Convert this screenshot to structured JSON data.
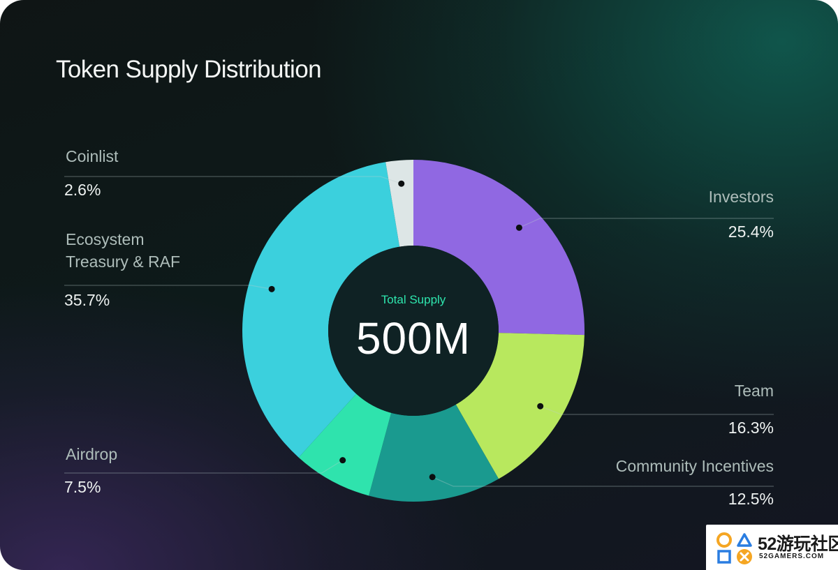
{
  "title": "Token Supply Distribution",
  "center": {
    "caption": "Total Supply",
    "value": "500M"
  },
  "chart_data": {
    "type": "pie",
    "title": "Token Supply Distribution",
    "total": "500M",
    "slices": [
      {
        "name": "Investors",
        "value": 25.4,
        "label": "25.4%",
        "color": "#9068e2"
      },
      {
        "name": "Team",
        "value": 16.3,
        "label": "16.3%",
        "color": "#b8e85e"
      },
      {
        "name": "Community Incentives",
        "value": 12.5,
        "label": "12.5%",
        "color": "#1a9a8f"
      },
      {
        "name": "Airdrop",
        "value": 7.5,
        "label": "7.5%",
        "color": "#2fe3ad"
      },
      {
        "name": "Ecosystem Treasury & RAF",
        "value": 35.7,
        "label": "35.7%",
        "color": "#3bd0dd"
      },
      {
        "name": "Coinlist",
        "value": 2.6,
        "label": "2.6%",
        "color": "#dde6e6"
      }
    ]
  },
  "labels": {
    "coinlist": {
      "name": "Coinlist",
      "pct": "2.6%"
    },
    "ecosystem": {
      "name_line1": "Ecosystem",
      "name_line2": "Treasury & RAF",
      "pct": "35.7%"
    },
    "airdrop": {
      "name": "Airdrop",
      "pct": "7.5%"
    },
    "investors": {
      "name": "Investors",
      "pct": "25.4%"
    },
    "team": {
      "name": "Team",
      "pct": "16.3%"
    },
    "community": {
      "name": "Community Incentives",
      "pct": "12.5%"
    }
  },
  "watermark": {
    "cn_text": "52游玩社区",
    "en_text": "52GAMERS.COM"
  }
}
